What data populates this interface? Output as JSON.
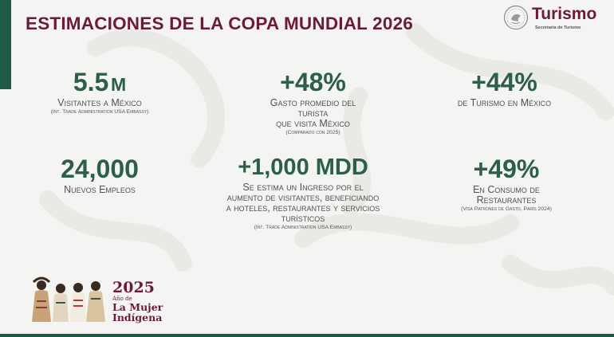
{
  "header": {
    "title": "ESTIMACIONES DE LA COPA MUNDIAL 2026"
  },
  "brand": {
    "name": "Turismo",
    "subtitle": "Secretaría de Turismo",
    "seal_icon": "mexico-seal-icon"
  },
  "stats": [
    {
      "value": "5.5",
      "unit": "M",
      "label": "Visitantes a México",
      "note": "(Int. Trade Administration USA Embassy)"
    },
    {
      "value": "+48%",
      "label_lines": [
        "Gasto promedio del",
        "turista",
        "que visita México"
      ],
      "note": "(Comparado con 2025)"
    },
    {
      "value": "+44%",
      "label": "de Turismo en México"
    },
    {
      "value": "24,000",
      "label": "Nuevos Empleos"
    },
    {
      "value": "+1,000 MDD",
      "label_lines": [
        "Se estima un Ingreso por el",
        "aumento de visitantes, beneficiando",
        "a hoteles, restaurantes y servicios",
        "turísticos"
      ],
      "note": "(Int. Trade Administration USA Embassy)"
    },
    {
      "value": "+49%",
      "label_lines": [
        "En Consumo de",
        "Restaurantes"
      ],
      "note": "(Visa Patrones de Gasto, París 2024)"
    }
  ],
  "footer_logo": {
    "year": "2025",
    "line1": "Año de",
    "line2": "La Mujer",
    "line3": "Indígena",
    "icon": "indigenous-women-illustration-icon"
  },
  "colors": {
    "title": "#6b1a3a",
    "accent_green": "#2b5f47",
    "bar_green": "#1f5a44",
    "background": "#f4f4f2"
  }
}
